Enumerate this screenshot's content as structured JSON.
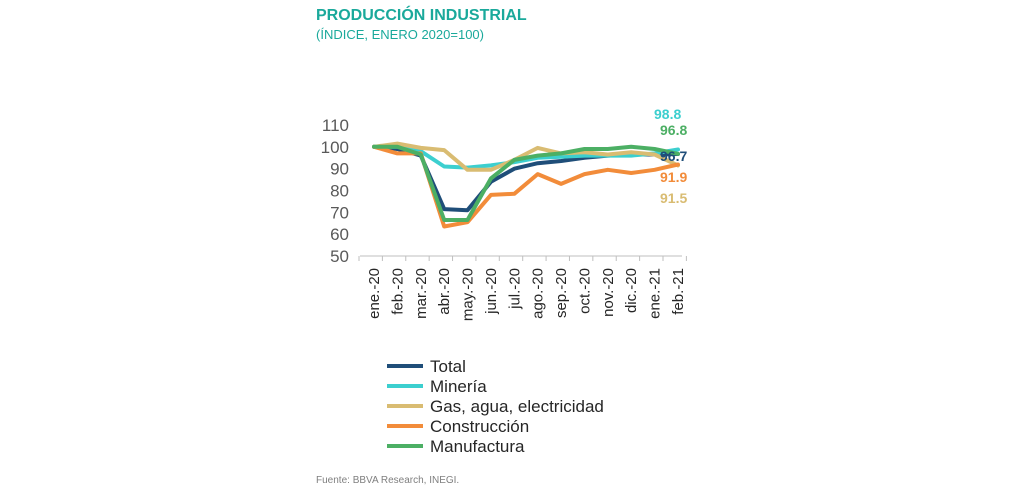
{
  "chart_data": {
    "type": "line",
    "title": "PRODUCCIÓN INDUSTRIAL",
    "subtitle": "(ÍNDICE, ENERO 2020=100)",
    "categories": [
      "ene.-20",
      "feb.-20",
      "mar.-20",
      "abr.-20",
      "may.-20",
      "jun.-20",
      "jul.-20",
      "ago.-20",
      "sep.-20",
      "oct.-20",
      "nov.-20",
      "dic.-20",
      "ene.-21",
      "feb.-21"
    ],
    "ylim": [
      50,
      110
    ],
    "yticks": [
      "50",
      "60",
      "70",
      "80",
      "90",
      "100",
      "110"
    ],
    "grid": false,
    "legend_position": "bottom",
    "series": [
      {
        "name": "Total",
        "color": "#1f4e79",
        "end_label": "96.7",
        "values": [
          100,
          99,
          96,
          71.5,
          71,
          84,
          90,
          92.5,
          93.5,
          95,
          96,
          96.5,
          96.5,
          96.7
        ]
      },
      {
        "name": "Minería",
        "color": "#3ccfcf",
        "end_label": "98.8",
        "values": [
          100,
          100,
          98,
          91,
          90.5,
          91.5,
          93,
          95,
          95.5,
          96,
          96,
          96,
          97,
          98.8
        ]
      },
      {
        "name": "Gas, agua, electricidad",
        "color": "#d9bc72",
        "end_label": "91.5",
        "values": [
          100,
          101.5,
          99.5,
          98.5,
          89.5,
          89.5,
          94,
          99.5,
          97,
          97.5,
          96.5,
          97.5,
          96.5,
          91.5
        ]
      },
      {
        "name": "Construcción",
        "color": "#f28c3a",
        "end_label": "91.9",
        "values": [
          100,
          97,
          97,
          63.5,
          65.5,
          78,
          78.5,
          87.5,
          83,
          87.5,
          89.5,
          88,
          89.5,
          91.9
        ]
      },
      {
        "name": "Manufactura",
        "color": "#4caf64",
        "end_label": "96.8",
        "values": [
          100,
          100,
          96.5,
          66.5,
          66.5,
          85.5,
          94,
          96,
          97,
          99,
          99,
          100,
          99,
          96.8
        ]
      }
    ]
  },
  "source": "Fuente: BBVA Research, INEGI."
}
